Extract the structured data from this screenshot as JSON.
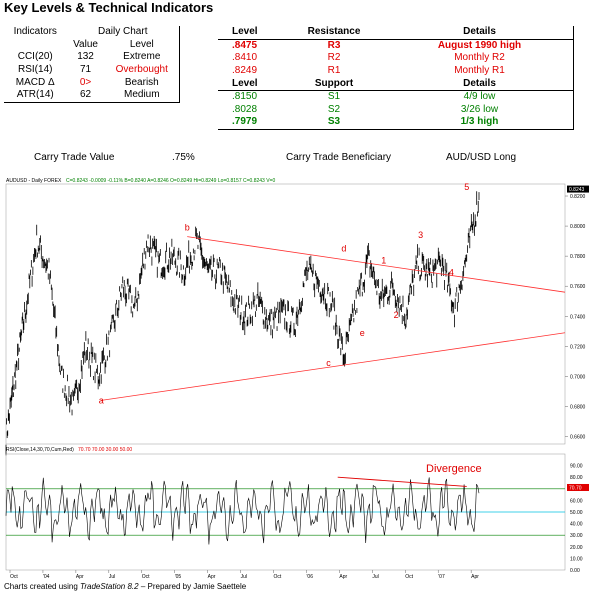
{
  "title": "Key Levels & Technical Indicators",
  "indicators": {
    "header1": [
      "Indicators",
      "Daily Chart",
      ""
    ],
    "header2": [
      "",
      "Value",
      "Level"
    ],
    "rows": [
      {
        "name": "CCI(20)",
        "value": "132",
        "level": "Extreme",
        "level_color": "#000000"
      },
      {
        "name": "RSI(14)",
        "value": "71",
        "level": "Overbought",
        "level_color": "#e00000"
      },
      {
        "name": "MACD Δ",
        "value": "0>",
        "level": "Bearish",
        "level_color": "#000000"
      },
      {
        "name": "ATR(14)",
        "value": "62",
        "level": "Medium",
        "level_color": "#000000"
      }
    ]
  },
  "levels": {
    "resistance_header": [
      "Level",
      "Resistance",
      "Details"
    ],
    "resistance": [
      {
        "level": ".8475",
        "name": "R3",
        "details": "August 1990 high"
      },
      {
        "level": ".8410",
        "name": "R2",
        "details": "Monthly R2"
      },
      {
        "level": ".8249",
        "name": "R1",
        "details": "Monthly R1"
      }
    ],
    "support_header": [
      "Level",
      "Support",
      "Details"
    ],
    "support": [
      {
        "level": ".8150",
        "name": "S1",
        "details": "4/9 low"
      },
      {
        "level": ".8028",
        "name": "S2",
        "details": "3/26 low"
      },
      {
        "level": ".7979",
        "name": "S3",
        "details": "1/3 high"
      }
    ]
  },
  "carry": {
    "label": "Carry Trade Value",
    "value": ".75%",
    "beneficiary_label": "Carry Trade Beneficiary",
    "position": "AUD/USD Long"
  },
  "chart_data": [
    {
      "type": "line",
      "header": "AUDUSD - Daily FOREX",
      "header_values": "C=0.8243 -0.0009 -0.11%   B=0.8240   A=0.8246   O=0.8249   Hi=0.8249   Lo=0.8157   C=0.8243   V=0",
      "y_ticks": [
        "0.8200",
        "0.8000",
        "0.7800",
        "0.7600",
        "0.7400",
        "0.7200",
        "0.7000",
        "0.6800",
        "0.6600"
      ],
      "ylim": [
        0.655,
        0.828
      ],
      "last_price": "0.8243",
      "x_ticks": [
        "Oct",
        "'04",
        "Apr",
        "Jul",
        "Oct",
        "'05",
        "Apr",
        "Jul",
        "Oct",
        "'06",
        "Apr",
        "Jul",
        "Oct",
        "'07",
        "Apr"
      ],
      "close_series": {
        "x": [
          0,
          3,
          6,
          10,
          14,
          18,
          22,
          26,
          30,
          34,
          38,
          42,
          46,
          50,
          54,
          58,
          62,
          66,
          70,
          74,
          78,
          82,
          86,
          90,
          94,
          98,
          102,
          106,
          110,
          114,
          118,
          122,
          126,
          130,
          134,
          138,
          142,
          146,
          150,
          154
        ],
        "y": [
          0.66,
          0.7,
          0.74,
          0.79,
          0.77,
          0.7,
          0.68,
          0.72,
          0.7,
          0.725,
          0.76,
          0.745,
          0.79,
          0.775,
          0.78,
          0.77,
          0.79,
          0.768,
          0.77,
          0.75,
          0.74,
          0.75,
          0.735,
          0.742,
          0.735,
          0.77,
          0.762,
          0.748,
          0.712,
          0.748,
          0.778,
          0.752,
          0.76,
          0.74,
          0.775,
          0.768,
          0.775,
          0.745,
          0.78,
          0.82
        ]
      },
      "wave_labels": [
        {
          "label": "a",
          "x": 31,
          "y": 0.682
        },
        {
          "label": "b",
          "x": 59,
          "y": 0.797
        },
        {
          "label": "c",
          "x": 105,
          "y": 0.707
        },
        {
          "label": "d",
          "x": 110,
          "y": 0.783
        },
        {
          "label": "e",
          "x": 116,
          "y": 0.727
        },
        {
          "label": "1",
          "x": 123,
          "y": 0.775
        },
        {
          "label": "2",
          "x": 127,
          "y": 0.739
        },
        {
          "label": "3",
          "x": 135,
          "y": 0.792
        },
        {
          "label": "4",
          "x": 145,
          "y": 0.767
        },
        {
          "label": "5",
          "x": 150,
          "y": 0.824
        }
      ],
      "trendlines": [
        {
          "x1": 59,
          "y1": 0.793,
          "x2": 182,
          "y2": 0.756
        },
        {
          "x1": 31,
          "y1": 0.684,
          "x2": 182,
          "y2": 0.729
        }
      ]
    },
    {
      "type": "line",
      "header": "RSI(Close,14,30,70,Cum,Red)",
      "header_values": "70.70   70.00   30.00   50.00",
      "y_ticks": [
        "90.00",
        "80.00",
        "70.00",
        "60.00",
        "50.00",
        "40.00",
        "30.00",
        "20.00",
        "10.00",
        "0.00"
      ],
      "ylim": [
        0,
        100
      ],
      "last_value": "70.70",
      "reference_lines": [
        70,
        50,
        30
      ],
      "annotation": "Divergence",
      "divergence_line": {
        "x1": 108,
        "y1": 80,
        "x2": 150,
        "y2": 72
      }
    }
  ],
  "footer": {
    "prefix": "Charts created using ",
    "software": "TradeStation 8.2",
    "suffix": " – Prepared by Jamie Saettele"
  },
  "colors": {
    "accent_red": "#e00000",
    "green": "#008000",
    "cyan": "#00c0e0"
  }
}
